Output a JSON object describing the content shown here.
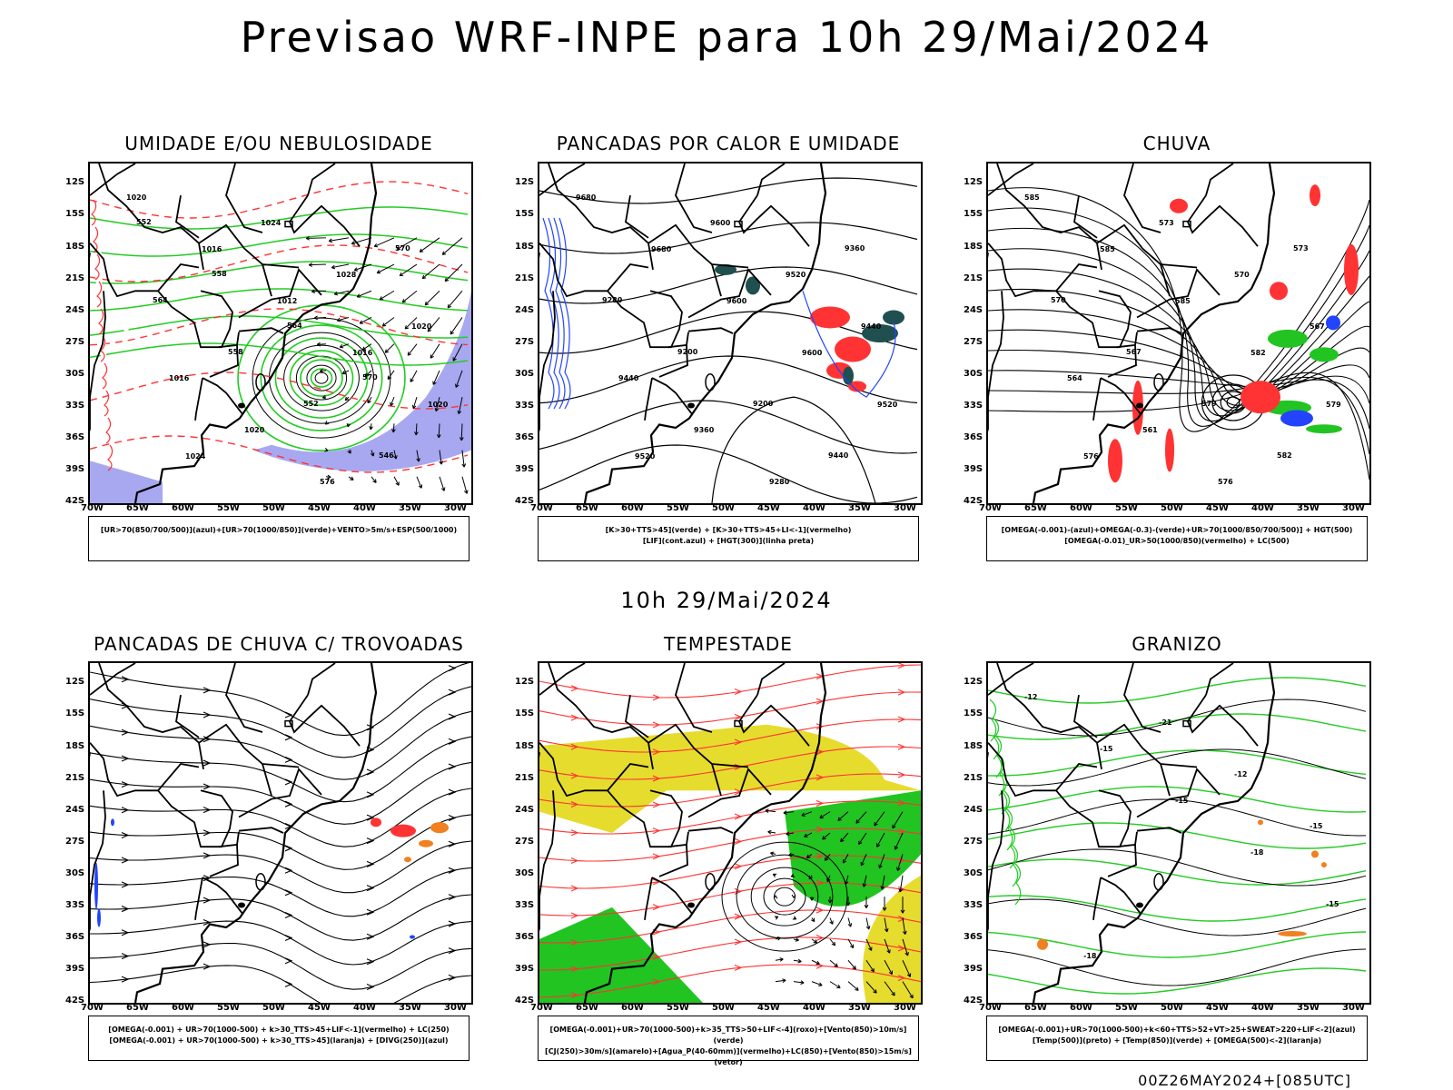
{
  "title": "Previsao WRF-INPE  para 10h 29/Mai/2024",
  "subtitle": "10h 29/Mai/2024",
  "footer": "00Z26MAY2024+[085UTC]",
  "lat_ticks": [
    "12S",
    "15S",
    "18S",
    "21S",
    "24S",
    "27S",
    "30S",
    "33S",
    "36S",
    "39S",
    "42S"
  ],
  "lon_ticks": [
    "70W",
    "65W",
    "60W",
    "55W",
    "50W",
    "45W",
    "40W",
    "35W",
    "30W"
  ],
  "panels": [
    {
      "title": "UMIDADE E/OU NEBULOSIDADE",
      "legend": [
        "[UR>70(850/700/500)](azul)+[UR>70(1000/850)](verde)+VENTO>5m/s+ESP(500/1000)"
      ],
      "labels": [
        "1020",
        "1016",
        "1012",
        "1016",
        "1020",
        "1024",
        "1024",
        "1028",
        "1020",
        "1016",
        "1020",
        "576",
        "570",
        "564",
        "558",
        "552",
        "546",
        "552",
        "558",
        "564",
        "570"
      ]
    },
    {
      "title": "PANCADAS POR CALOR E UMIDADE",
      "legend": [
        "[K>30+TTS>45](verde) + [K>30+TTS>45+LI<-1](vermelho)",
        "[LIF](cont.azul) + [HGT(300)](linha preta)"
      ],
      "labels": [
        "9680",
        "9680",
        "9600",
        "9600",
        "9520",
        "9520",
        "9600",
        "9520",
        "9440",
        "9440",
        "9360",
        "9280",
        "9360",
        "9280",
        "9200",
        "9200",
        "9440"
      ]
    },
    {
      "title": "CHUVA",
      "legend": [
        "[OMEGA(-0.001)-(azul)+OMEGA(-0.3)-(verde)+UR>70(1000/850/700/500)] + HGT(500)",
        "[OMEGA(-0.01)_UR>50(1000/850)(vermelho) + LC(500)"
      ],
      "labels": [
        "585",
        "585",
        "585",
        "582",
        "579",
        "576",
        "573",
        "570",
        "567",
        "564",
        "561",
        "576",
        "573",
        "570",
        "567",
        "579",
        "582"
      ]
    },
    {
      "title": "PANCADAS DE CHUVA C/ TROVOADAS",
      "legend": [
        "[OMEGA(-0.001) + UR>70(1000-500) + k>30_TTS>45+LIF<-1](vermelho) + LC(250)",
        "[OMEGA(-0.001) + UR>70(1000-500) + k>30_TTS>45](laranja) + [DIVG(250)](azul)"
      ],
      "labels": []
    },
    {
      "title": "TEMPESTADE",
      "legend": [
        "[OMEGA(-0.001)+UR>70(1000-500)+k>35_TTS>50+LIF<-4](roxo)+[Vento(850)>10m/s](verde)",
        "[CJ(250)>30m/s](amarelo)+[Agua_P(40-60mm)](vermelho)+LC(850)+[Vento(850)>15m/s](vetor)"
      ],
      "labels": []
    },
    {
      "title": "GRANIZO",
      "legend": [
        "[OMEGA(-0.001)+UR>70(1000-500)+k<60+TTS>52+VT>25+SWEAT>220+LIF<-2](azul)",
        "[Temp(500)](preto) + [Temp(850)](verde) + [OMEGA(500)<-2](laranja)"
      ],
      "labels": [
        "-12",
        "-15",
        "-15",
        "-18",
        "-15",
        "-18",
        "-21",
        "-12",
        "-15"
      ]
    }
  ],
  "colors": {
    "coast": "#000000",
    "green": "#22cc22",
    "red_contour": "#ff3333",
    "blue_shade": "#9999ee",
    "red_shade": "#ff3333",
    "dark_teal": "#1f4f4f",
    "blue": "#2244ff",
    "orange": "#f08020",
    "yellow": "#e6dc2e",
    "green_fill": "#22c422"
  }
}
